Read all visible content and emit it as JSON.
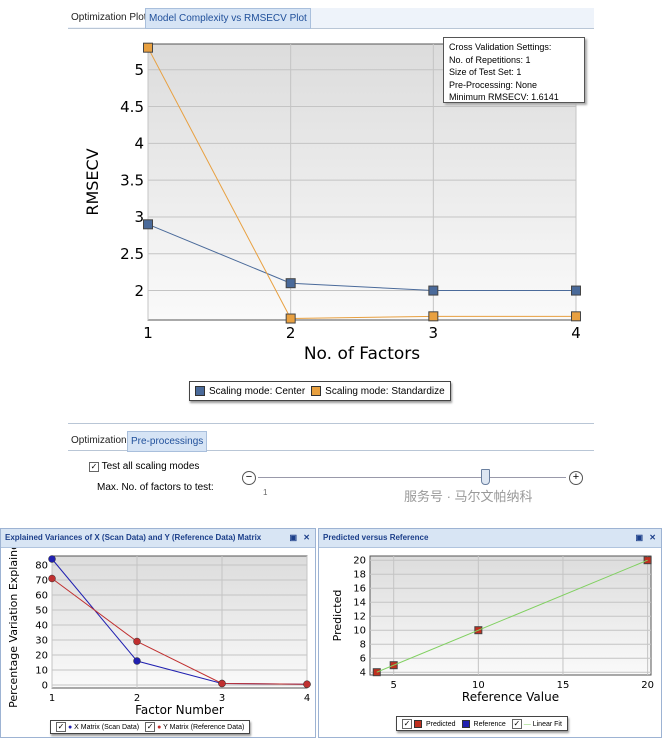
{
  "tabs": [
    {
      "label": "Optimization Plot",
      "active": true
    },
    {
      "label": "Model Complexity vs RMSECV Plot",
      "active": false
    }
  ],
  "tooltip": {
    "lines": [
      "Cross Validation Settings:",
      "No. of Repetitions: 1",
      "Size of Test Set: 1",
      "Pre-Processing: None",
      "Minimum RMSECV: 1.6141"
    ]
  },
  "bottom_tabs": [
    {
      "label": "Optimization"
    },
    {
      "label": "Pre-processings"
    }
  ],
  "options": {
    "test_all_label": "Test all scaling modes",
    "test_all_checked": true,
    "max_factors_label": "Max. No. of factors to test:",
    "slider_min_label": "1",
    "slider_value_fraction": 0.72
  },
  "watermark": "服务号 · 马尔文帕纳科",
  "panels": {
    "left_title": "Explained Variances of X (Scan Data) and Y (Reference Data) Matrix",
    "right_title": "Predicted versus Reference"
  },
  "chart_data": [
    {
      "type": "line",
      "xlabel": "No. of Factors",
      "ylabel": "RMSECV",
      "x": [
        1,
        2,
        3,
        4
      ],
      "xticks": [
        "1",
        "2",
        "3",
        "4"
      ],
      "yticks": [
        "2",
        "2.5",
        "3",
        "3.5",
        "4",
        "4.5",
        "5"
      ],
      "ylim": [
        1.6,
        5.35
      ],
      "grid": true,
      "legend": "bottom",
      "series": [
        {
          "name": "Scaling mode: Center",
          "color": "#4a6a9a",
          "values": [
            2.9,
            2.1,
            2.0,
            2.0
          ]
        },
        {
          "name": "Scaling mode: Standardize",
          "color": "#e8a040",
          "values": [
            5.3,
            1.62,
            1.65,
            1.65
          ]
        }
      ]
    },
    {
      "type": "line",
      "xlabel": "Factor Number",
      "ylabel": "Percentage Variation Explained",
      "x": [
        1,
        2,
        3,
        4
      ],
      "xticks": [
        "1",
        "2",
        "3",
        "4"
      ],
      "yticks": [
        "0",
        "10",
        "20",
        "30",
        "40",
        "50",
        "60",
        "70",
        "80"
      ],
      "ylim": [
        -2,
        86
      ],
      "grid": true,
      "legend": "bottom",
      "series": [
        {
          "name": "X Matrix (Scan Data)",
          "color": "#2020b0",
          "values": [
            84,
            16,
            1,
            0.5
          ]
        },
        {
          "name": "Y Matrix (Reference Data)",
          "color": "#c03030",
          "values": [
            71,
            29,
            1,
            0.5
          ]
        }
      ]
    },
    {
      "type": "scatter",
      "xlabel": "Reference Value",
      "ylabel": "Predicted",
      "xticks": [
        "5",
        "10",
        "15",
        "20"
      ],
      "yticks": [
        "4",
        "6",
        "8",
        "10",
        "12",
        "14",
        "16",
        "18",
        "20"
      ],
      "xlim": [
        3.6,
        20.2
      ],
      "ylim": [
        3.6,
        20.6
      ],
      "grid": true,
      "legend": "bottom",
      "series": [
        {
          "name": "Predicted",
          "color": "#c03020",
          "x": [
            4,
            5,
            10,
            20
          ],
          "y": [
            4,
            5,
            10,
            20
          ]
        },
        {
          "name": "Reference",
          "color": "#2020b0"
        },
        {
          "name": "Linear Fit",
          "color": "#80d060",
          "x": [
            4,
            20
          ],
          "y": [
            4,
            20
          ]
        }
      ]
    }
  ]
}
